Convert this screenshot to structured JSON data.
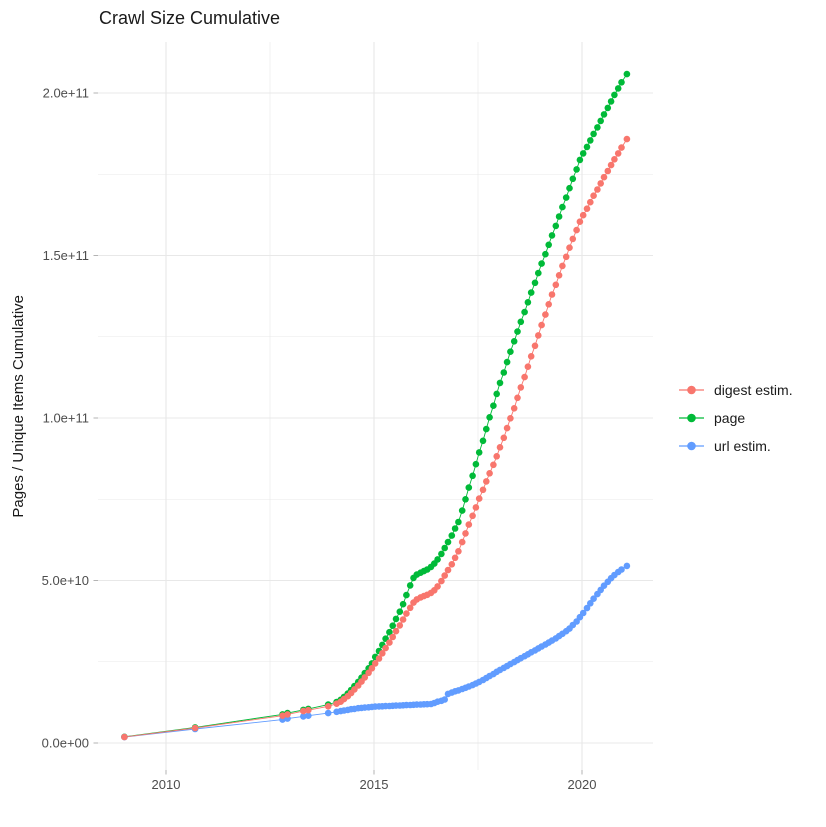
{
  "page": {
    "background": "#ffffff"
  },
  "chart_data": {
    "type": "line",
    "title": "Crawl Size Cumulative",
    "xlabel": "",
    "ylabel": "Pages / Unique Items Cumulative",
    "legend_position": "right",
    "grid": true,
    "values_unit": "billions (1e9)",
    "x_axis": {
      "ticks": [
        2010,
        2015,
        2020
      ],
      "tick_labels": [
        "2010",
        "2015",
        "2020"
      ],
      "minor_ticks": [
        2012.5,
        2017.5
      ],
      "range": [
        2009.0,
        2021.1
      ]
    },
    "y_axis": {
      "ticks_e9": [
        0,
        50,
        100,
        150,
        200
      ],
      "tick_labels": [
        "0.0e+00",
        "5.0e+10",
        "1.0e+11",
        "1.5e+11",
        "2.0e+11"
      ],
      "minor_ticks_e9": [
        25,
        75,
        125,
        175
      ],
      "range_e9": [
        0,
        206
      ]
    },
    "x": [
      2009.0,
      2010.7,
      2012.8,
      2012.92,
      2013.3,
      2013.42,
      2013.9,
      2014.1,
      2014.2,
      2014.28,
      2014.37,
      2014.45,
      2014.53,
      2014.62,
      2014.7,
      2014.78,
      2014.87,
      2014.95,
      2015.03,
      2015.12,
      2015.2,
      2015.28,
      2015.37,
      2015.45,
      2015.53,
      2015.62,
      2015.7,
      2015.78,
      2015.87,
      2015.95,
      2016.03,
      2016.12,
      2016.2,
      2016.28,
      2016.37,
      2016.45,
      2016.53,
      2016.62,
      2016.7,
      2016.78,
      2016.87,
      2016.95,
      2017.03,
      2017.12,
      2017.2,
      2017.28,
      2017.37,
      2017.45,
      2017.53,
      2017.62,
      2017.7,
      2017.78,
      2017.87,
      2017.95,
      2018.03,
      2018.12,
      2018.2,
      2018.28,
      2018.37,
      2018.45,
      2018.53,
      2018.62,
      2018.7,
      2018.78,
      2018.87,
      2018.95,
      2019.03,
      2019.12,
      2019.2,
      2019.28,
      2019.37,
      2019.45,
      2019.53,
      2019.62,
      2019.7,
      2019.78,
      2019.87,
      2019.95,
      2020.03,
      2020.12,
      2020.2,
      2020.28,
      2020.37,
      2020.45,
      2020.53,
      2020.62,
      2020.7,
      2020.78,
      2020.87,
      2020.95,
      2021.08
    ],
    "series": [
      {
        "name": "digest estim.",
        "color": "#F8766D",
        "values_e9": [
          1.85,
          4.6,
          8.4,
          8.8,
          9.8,
          10.1,
          11.3,
          12.1,
          12.7,
          13.5,
          14.4,
          15.4,
          16.5,
          17.7,
          18.9,
          20.2,
          21.6,
          23.0,
          24.5,
          26.0,
          27.6,
          29.2,
          30.9,
          32.6,
          34.4,
          36.2,
          38.0,
          39.8,
          41.6,
          43.2,
          44.2,
          44.8,
          45.2,
          45.6,
          46.2,
          47.0,
          48.2,
          49.8,
          51.5,
          53.2,
          55.0,
          57.0,
          59.0,
          61.8,
          64.5,
          67.2,
          69.9,
          72.5,
          75.2,
          77.9,
          80.5,
          83.0,
          85.6,
          88.2,
          91.0,
          93.9,
          96.9,
          99.9,
          103.0,
          106.2,
          109.4,
          112.6,
          115.8,
          119.0,
          122.2,
          125.4,
          128.6,
          131.8,
          135.0,
          138.0,
          141.0,
          143.9,
          146.8,
          149.6,
          152.4,
          155.1,
          157.8,
          160.4,
          162.4,
          164.4,
          166.4,
          168.4,
          170.3,
          172.2,
          174.1,
          176.0,
          177.8,
          179.6,
          181.4,
          183.2,
          185.8
        ]
      },
      {
        "name": "page",
        "color": "#00BA38",
        "values_e9": [
          1.9,
          4.8,
          8.8,
          9.2,
          10.2,
          10.5,
          11.8,
          12.6,
          13.3,
          14.2,
          15.2,
          16.3,
          17.5,
          18.8,
          20.1,
          21.5,
          23.0,
          24.5,
          26.5,
          28.3,
          30.2,
          32.1,
          34.1,
          36.1,
          38.2,
          40.4,
          42.7,
          45.5,
          48.5,
          50.8,
          51.8,
          52.4,
          52.9,
          53.4,
          54.2,
          55.2,
          56.5,
          58.2,
          60.0,
          61.8,
          63.8,
          66.0,
          68.0,
          71.5,
          75.0,
          78.6,
          82.2,
          85.8,
          89.4,
          93.0,
          96.6,
          100.2,
          103.8,
          107.4,
          110.8,
          114.0,
          117.2,
          120.4,
          123.6,
          126.6,
          129.6,
          132.6,
          135.6,
          138.6,
          141.6,
          144.6,
          147.5,
          150.4,
          153.3,
          156.2,
          159.1,
          162.0,
          164.9,
          167.8,
          170.7,
          173.6,
          176.5,
          179.4,
          181.4,
          183.4,
          185.4,
          187.4,
          189.4,
          191.4,
          193.4,
          195.4,
          197.4,
          199.4,
          201.4,
          203.3,
          205.8
        ]
      },
      {
        "name": "url estim.",
        "color": "#619CFF",
        "values_e9": [
          1.8,
          4.3,
          7.2,
          7.5,
          8.2,
          8.4,
          9.2,
          9.6,
          9.8,
          10.0,
          10.2,
          10.4,
          10.5,
          10.7,
          10.8,
          10.9,
          11.0,
          11.1,
          11.2,
          11.25,
          11.3,
          11.35,
          11.4,
          11.45,
          11.5,
          11.55,
          11.6,
          11.65,
          11.7,
          11.75,
          11.8,
          11.85,
          11.9,
          11.95,
          12.0,
          12.3,
          12.7,
          13.0,
          13.4,
          15.1,
          15.5,
          15.9,
          16.2,
          16.6,
          17.0,
          17.4,
          17.8,
          18.3,
          18.8,
          19.4,
          20.0,
          20.6,
          21.2,
          21.9,
          22.5,
          23.1,
          23.7,
          24.3,
          24.9,
          25.5,
          26.1,
          26.7,
          27.3,
          27.9,
          28.5,
          29.1,
          29.7,
          30.3,
          30.9,
          31.5,
          32.2,
          32.9,
          33.6,
          34.4,
          35.2,
          36.3,
          37.4,
          38.7,
          40.0,
          41.5,
          43.0,
          44.4,
          45.8,
          47.1,
          48.4,
          49.6,
          50.7,
          51.7,
          52.6,
          53.4,
          54.5
        ]
      }
    ],
    "colors": {
      "grid": "#E8E8E8",
      "axis_text": "#4D4D4D",
      "tick_mark": "#B3B3B3",
      "title_text": "#1A1A1A"
    }
  }
}
